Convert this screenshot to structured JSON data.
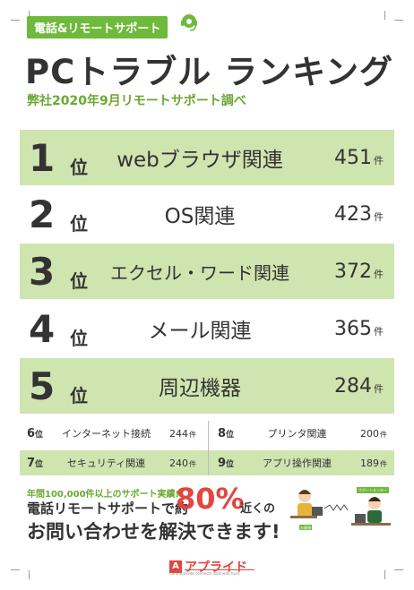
{
  "header": {
    "badge": "電話&リモートサポート",
    "title": "PCトラブル ランキング",
    "subtitle": "弊社2020年9月リモートサポート調べ"
  },
  "top_ranks": [
    {
      "rank": "1",
      "rank_suffix": "位",
      "category": "webブラウザ関連",
      "count": "451",
      "unit": "件"
    },
    {
      "rank": "2",
      "rank_suffix": "位",
      "category": "OS関連",
      "count": "423",
      "unit": "件"
    },
    {
      "rank": "3",
      "rank_suffix": "位",
      "category": "エクセル・ワード関連",
      "count": "372",
      "unit": "件"
    },
    {
      "rank": "4",
      "rank_suffix": "位",
      "category": "メール関連",
      "count": "365",
      "unit": "件"
    },
    {
      "rank": "5",
      "rank_suffix": "位",
      "category": "周辺機器",
      "count": "284",
      "unit": "件"
    }
  ],
  "small_ranks": [
    {
      "rank": "6",
      "rank_suffix": "位",
      "category": "インターネット接続",
      "count": "244",
      "unit": "件"
    },
    {
      "rank": "8",
      "rank_suffix": "位",
      "category": "プリンタ関連",
      "count": "200",
      "unit": "件"
    },
    {
      "rank": "7",
      "rank_suffix": "位",
      "category": "セキュリティ関連",
      "count": "240",
      "unit": "件"
    },
    {
      "rank": "9",
      "rank_suffix": "位",
      "category": "アプリ操作関連",
      "count": "189",
      "unit": "件"
    }
  ],
  "promo": {
    "line1": "年間100,000件以上のサポート実績!",
    "line2": "電話リモートサポートで約",
    "percent": "80%",
    "line3": "近くの",
    "line4": "お問い合わせを解決できます!",
    "label_customer": "お客様",
    "label_support": "サポートセンター"
  },
  "logo": {
    "mark": "A",
    "name": "アプライド",
    "tagline": "Communicate connects start with trust"
  },
  "colors": {
    "accent_green": "#6fb93c",
    "row_green": "#cfe5b0",
    "highlight_red": "#e2463f"
  }
}
